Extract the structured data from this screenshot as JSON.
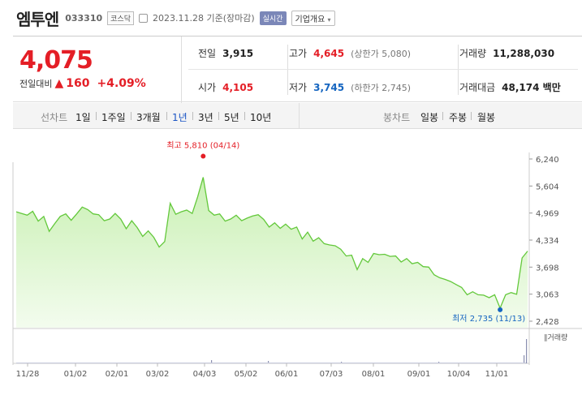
{
  "stock": {
    "name": "엠투엔",
    "code": "033310",
    "market": "코스닥",
    "date": "2023.11.28 기준(장마감)",
    "realtime": "실시간",
    "corp_info": "기업개요",
    "price": "4,075",
    "change_label": "전일대비",
    "change_value": "160",
    "change_pct": "+4.09%"
  },
  "stats": {
    "prev_label": "전일",
    "prev_value": "3,915",
    "high_label": "고가",
    "high_value": "4,645",
    "high_limit": "(상한가 5,080)",
    "volume_label": "거래량",
    "volume_value": "11,288,030",
    "open_label": "시가",
    "open_value": "4,105",
    "low_label": "저가",
    "low_value": "3,745",
    "low_limit": "(하한가 2,745)",
    "amount_label": "거래대금",
    "amount_value": "48,174 백만"
  },
  "tabs": {
    "line_label": "선차트",
    "line_tabs": [
      "1일",
      "1주일",
      "3개월",
      "1년",
      "3년",
      "5년",
      "10년"
    ],
    "selected": "1년",
    "candle_label": "봉차트",
    "candle_tabs": [
      "일봉",
      "주봉",
      "월봉"
    ]
  },
  "colors": {
    "up": "#e41e26",
    "down": "#1565c0",
    "line": "#63c83b",
    "fill_top": "#c9f0b3"
  },
  "chart_data": {
    "type": "area",
    "x_labels": [
      "11/28",
      "01/02",
      "02/01",
      "03/02",
      "04/03",
      "05/02",
      "06/01",
      "07/03",
      "08/01",
      "09/01",
      "10/04",
      "11/01"
    ],
    "y_ticks": [
      "6,240",
      "5,604",
      "4,969",
      "4,334",
      "3,698",
      "3,063",
      "2,428"
    ],
    "ylim": [
      2428,
      6240
    ],
    "high_annotation": "최고 5,810 (04/14)",
    "low_annotation": "최저 2,735 (11/13)",
    "volume_label": "거래량",
    "series": [
      {
        "values": [
          5000,
          4960,
          4920,
          5010,
          4780,
          4890,
          4540,
          4720,
          4890,
          4950,
          4800,
          4950,
          5110,
          5050,
          4950,
          4930,
          4790,
          4830,
          4960,
          4830,
          4600,
          4790,
          4630,
          4420,
          4550,
          4400,
          4170,
          4300,
          5200,
          4940,
          5000,
          5040,
          4960,
          5350,
          5810,
          5030,
          4920,
          4950,
          4780,
          4830,
          4920,
          4790,
          4850,
          4900,
          4930,
          4820,
          4640,
          4740,
          4610,
          4710,
          4590,
          4640,
          4360,
          4520,
          4310,
          4390,
          4250,
          4220,
          4200,
          4120,
          3960,
          3980,
          3640,
          3900,
          3810,
          4020,
          3990,
          4000,
          3950,
          3960,
          3820,
          3900,
          3780,
          3810,
          3710,
          3700,
          3520,
          3450,
          3410,
          3360,
          3290,
          3220,
          3050,
          3120,
          3050,
          3040,
          2980,
          3050,
          2735,
          3050,
          3100,
          3060,
          3915,
          4075
        ]
      }
    ]
  }
}
